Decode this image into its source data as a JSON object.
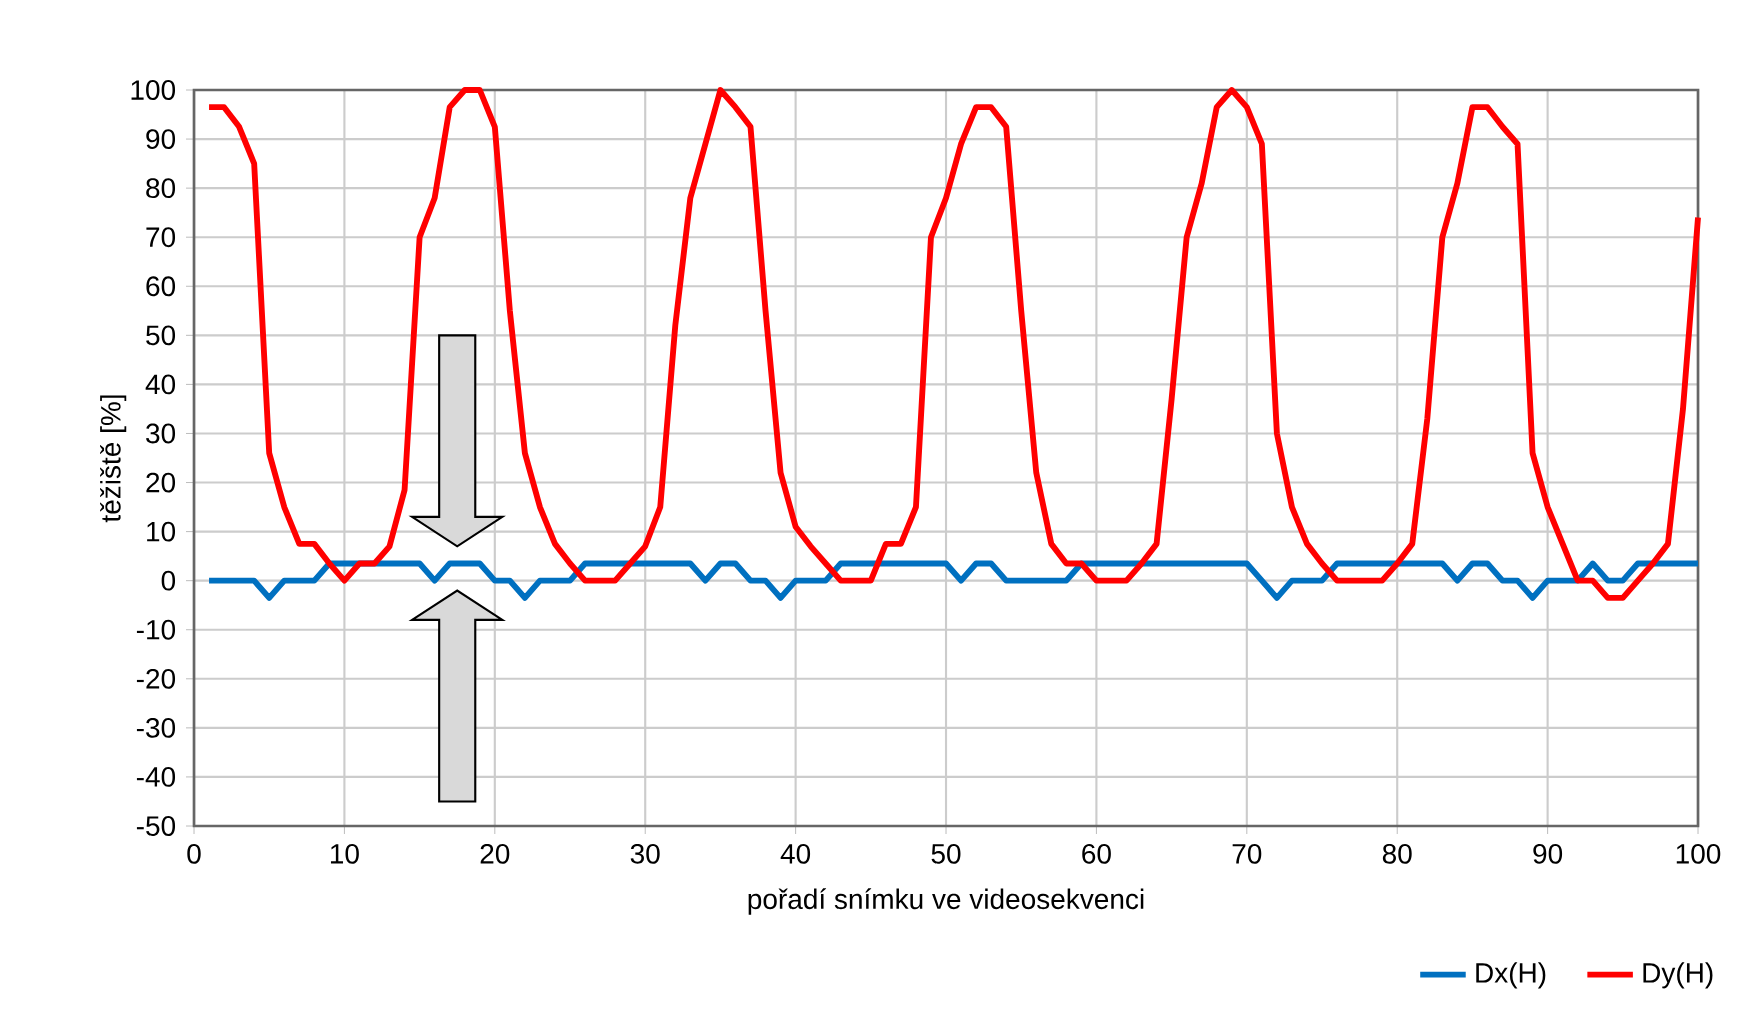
{
  "chart_data": {
    "type": "line",
    "xlabel": "pořadí snímku ve videosekvenci",
    "ylabel": "těžiště [%]",
    "x": [
      1,
      2,
      3,
      4,
      5,
      6,
      7,
      8,
      9,
      10,
      11,
      12,
      13,
      14,
      15,
      16,
      17,
      18,
      19,
      20,
      21,
      22,
      23,
      24,
      25,
      26,
      27,
      28,
      29,
      30,
      31,
      32,
      33,
      34,
      35,
      36,
      37,
      38,
      39,
      40,
      41,
      42,
      43,
      44,
      45,
      46,
      47,
      48,
      49,
      50,
      51,
      52,
      53,
      54,
      55,
      56,
      57,
      58,
      59,
      60,
      61,
      62,
      63,
      64,
      65,
      66,
      67,
      68,
      69,
      70,
      71,
      72,
      73,
      74,
      75,
      76,
      77,
      78,
      79,
      80,
      81,
      82,
      83,
      84,
      85,
      86,
      87,
      88,
      89,
      90,
      91,
      92,
      93,
      94,
      95,
      96,
      97,
      98,
      99,
      100
    ],
    "series": [
      {
        "name": "Dx(H)",
        "color": "#0070c0",
        "values": [
          0,
          0,
          0,
          0,
          -3.5,
          0,
          0,
          0,
          3.5,
          3.5,
          3.5,
          3.5,
          3.5,
          3.5,
          3.5,
          0,
          3.5,
          3.5,
          3.5,
          0,
          0,
          -3.5,
          0,
          0,
          0,
          3.5,
          3.5,
          3.5,
          3.5,
          3.5,
          3.5,
          3.5,
          3.5,
          0,
          3.5,
          3.5,
          0,
          0,
          -3.5,
          0,
          0,
          0,
          3.5,
          3.5,
          3.5,
          3.5,
          3.5,
          3.5,
          3.5,
          3.5,
          0,
          3.5,
          3.5,
          0,
          0,
          0,
          0,
          0,
          3.5,
          3.5,
          3.5,
          3.5,
          3.5,
          3.5,
          3.5,
          3.5,
          3.5,
          3.5,
          3.5,
          3.5,
          0,
          -3.5,
          0,
          0,
          0,
          3.5,
          3.5,
          3.5,
          3.5,
          3.5,
          3.5,
          3.5,
          3.5,
          0,
          3.5,
          3.5,
          0,
          0,
          -3.5,
          0,
          0,
          0,
          3.5,
          0,
          0,
          3.5,
          3.5,
          3.5,
          3.5,
          3.5
        ]
      },
      {
        "name": "Dy(H)",
        "color": "#ff0000",
        "values": [
          96.5,
          96.5,
          92.5,
          85,
          26,
          15,
          7.5,
          7.5,
          3.5,
          0,
          3.5,
          3.5,
          7,
          18.5,
          70,
          78,
          96.5,
          100,
          100,
          92.5,
          55,
          26,
          15,
          7.5,
          3.5,
          0,
          0,
          0,
          3.5,
          7,
          15,
          52,
          78,
          89,
          100,
          96.5,
          92.5,
          55,
          22,
          11,
          7,
          3.5,
          0,
          0,
          0,
          7.5,
          7.5,
          15,
          70,
          78,
          89,
          96.5,
          96.5,
          92.5,
          55,
          22,
          7.5,
          3.5,
          3.5,
          0,
          0,
          0,
          3.5,
          7.5,
          37,
          70,
          81,
          96.5,
          100,
          96.5,
          89,
          30,
          15,
          7.5,
          3.5,
          0,
          0,
          0,
          0,
          3.5,
          7.5,
          33,
          70,
          81,
          96.5,
          96.5,
          92.5,
          89,
          26,
          15,
          7.5,
          0,
          0,
          -3.5,
          -3.5,
          0,
          3.5,
          7.5,
          35,
          74
        ]
      }
    ],
    "xlim": [
      0,
      100
    ],
    "xticks": [
      0,
      10,
      20,
      30,
      40,
      50,
      60,
      70,
      80,
      90,
      100
    ],
    "ylim": [
      -50,
      100
    ],
    "yticks": [
      -50,
      -40,
      -30,
      -20,
      -10,
      0,
      10,
      20,
      30,
      40,
      50,
      60,
      70,
      80,
      90,
      100
    ],
    "grid": true,
    "legend": "bottom right",
    "marker": "none",
    "line_style": "solid"
  }
}
